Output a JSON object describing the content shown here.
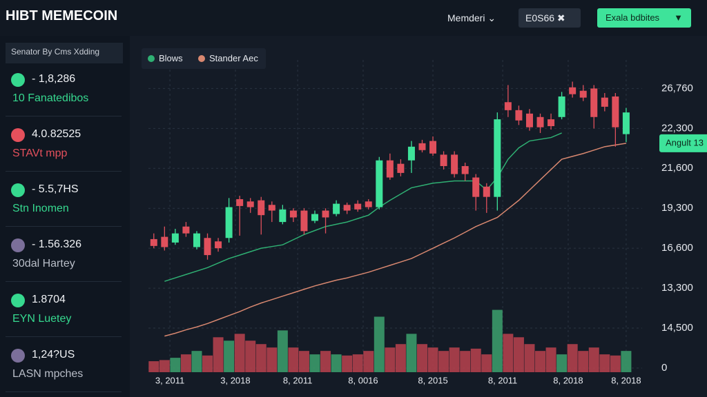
{
  "header": {
    "title": "HIBT MEMECOIN",
    "menu": "Memderi",
    "field": "E0S66",
    "button": "Exala bdbites"
  },
  "sidebar": {
    "title": "Senator By Cms Xdding",
    "items": [
      {
        "value": "- 1,8,286",
        "label": "10 Fanatedibos",
        "color": "#36d98f"
      },
      {
        "value": "4.0.82525",
        "label": "STAVt mpp",
        "color": "#e5505c"
      },
      {
        "value": "- 5.5,7HS",
        "label": "Stn Inomen",
        "color": "#36d98f"
      },
      {
        "value": "- 1.56.326",
        "label": "30dal Hartey",
        "color": "#7b6f9a"
      },
      {
        "value": "1.8704",
        "label": "EYN Luetey",
        "color": "#36d98f"
      },
      {
        "value": "1,24?US",
        "label": "LASN mpches",
        "color": "#7b6f9a"
      }
    ]
  },
  "chart_data": {
    "type": "candlestick",
    "up_color": "#3ee39a",
    "down_color": "#e0505c",
    "open": [
      11300,
      11500,
      11000,
      12400,
      10600,
      11400,
      11100,
      11400,
      14800,
      14600,
      14700,
      14300,
      12800,
      13800,
      13800,
      12900,
      13800,
      13500,
      14300,
      14400,
      14600,
      14100,
      18200,
      17900,
      18200,
      19700,
      19900,
      18700,
      18700,
      17700,
      16700,
      15900,
      15000,
      23300,
      22600,
      22300,
      22000,
      21800,
      22000,
      24600,
      24300,
      24500,
      23700,
      23800,
      20500
    ],
    "high": [
      11800,
      12400,
      12200,
      12800,
      12000,
      11800,
      11400,
      14900,
      15100,
      14900,
      15000,
      14600,
      14300,
      14000,
      14000,
      13800,
      14000,
      14700,
      14500,
      14700,
      14800,
      18500,
      18800,
      18300,
      19900,
      20000,
      20300,
      19000,
      19000,
      18000,
      17000,
      16200,
      22400,
      24800,
      23000,
      22700,
      22300,
      22300,
      24200,
      25100,
      24800,
      24800,
      24100,
      24100,
      22800
    ],
    "low": [
      10500,
      10300,
      10800,
      11500,
      10400,
      9500,
      10200,
      11000,
      11600,
      13600,
      11700,
      12800,
      12600,
      12800,
      11700,
      12700,
      11800,
      13300,
      13500,
      13700,
      13900,
      13900,
      16500,
      16800,
      17100,
      18900,
      18600,
      17400,
      16700,
      16400,
      13800,
      13600,
      13800,
      22000,
      21300,
      20800,
      20600,
      20900,
      21800,
      23700,
      23400,
      21000,
      22500,
      19400,
      19800
    ],
    "close": [
      10700,
      10600,
      11800,
      11800,
      11800,
      9900,
      10500,
      14100,
      14200,
      14100,
      13400,
      13800,
      13900,
      13200,
      12000,
      13500,
      13200,
      14400,
      13800,
      13900,
      14100,
      18200,
      16700,
      17100,
      19400,
      19100,
      18800,
      17700,
      17000,
      17000,
      15000,
      15000,
      21800,
      22600,
      21700,
      21100,
      21100,
      21200,
      23800,
      24000,
      23700,
      22000,
      22900,
      21100,
      22400
    ],
    "volume": [
      600,
      700,
      900,
      1200,
      1500,
      1100,
      2700,
      2400,
      3000,
      2400,
      2100,
      1800,
      3300,
      1800,
      1500,
      1200,
      1500,
      1200,
      1100,
      1200,
      1500,
      4500,
      1800,
      2100,
      3000,
      2100,
      1800,
      1500,
      1800,
      1500,
      1700,
      1200,
      5100,
      3000,
      2700,
      2100,
      1500,
      1800,
      1200,
      2100,
      1500,
      1800,
      1200,
      1100,
      1500
    ],
    "series": [
      {
        "name": "Blows",
        "color": "#2fb073",
        "values": [
          null,
          7600,
          7900,
          8200,
          8500,
          8800,
          9200,
          9600,
          9900,
          10200,
          10500,
          10650,
          10800,
          11250,
          11700,
          12050,
          12400,
          12600,
          12800,
          13100,
          13400,
          14100,
          14700,
          15250,
          15800,
          16000,
          16200,
          16300,
          16400,
          16400,
          16400,
          15600,
          16700,
          18300,
          19300,
          19900,
          20050,
          20200,
          20600,
          null,
          null,
          null,
          null,
          null,
          null
        ]
      },
      {
        "name": "Stander Aec",
        "color": "#d98870",
        "values": [
          null,
          2800,
          3050,
          3350,
          3600,
          3900,
          4250,
          4600,
          4950,
          5350,
          5700,
          6000,
          6300,
          6600,
          6900,
          7200,
          7450,
          7700,
          7900,
          8150,
          8400,
          8700,
          9000,
          9300,
          9600,
          10050,
          10500,
          10950,
          11400,
          11900,
          12400,
          12800,
          13200,
          13950,
          14700,
          15600,
          16500,
          17400,
          18300,
          18550,
          18800,
          19100,
          19400,
          19550,
          19700
        ]
      }
    ],
    "xlim": [
      -0.5,
      46
    ],
    "xticks": [
      {
        "value": 1.5,
        "label": "3, 2011"
      },
      {
        "value": 7.6,
        "label": "3, 2018"
      },
      {
        "value": 13.4,
        "label": "8, 2011"
      },
      {
        "value": 19.5,
        "label": "8, 0016"
      },
      {
        "value": 26,
        "label": "8, 2015"
      },
      {
        "value": 32.5,
        "label": "8, 2011"
      },
      {
        "value": 38.6,
        "label": "8, 2018"
      },
      {
        "value": 44,
        "label": "8, 2018"
      }
    ],
    "ylim": [
      0,
      27000
    ],
    "yticks": [
      0,
      {
        "value": 3500,
        "label": "14,500"
      },
      {
        "value": 7000,
        "label": "13,300"
      },
      {
        "value": 10500,
        "label": "16,600"
      },
      {
        "value": 14000,
        "label": "19,300"
      },
      {
        "value": 17500,
        "label": "21,600"
      },
      {
        "value": 21000,
        "label": "22,300"
      },
      {
        "value": 24500,
        "label": "26,760"
      }
    ],
    "annotation": "Angult 13",
    "grid": true
  }
}
